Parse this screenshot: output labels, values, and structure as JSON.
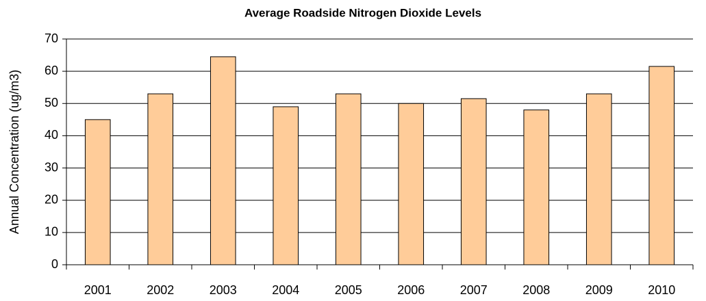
{
  "chart_data": {
    "type": "bar",
    "title": "Average Roadside Nitrogen Dioxide Levels",
    "y_label": "Annual Concentration (ug/m3)",
    "categories": [
      "2001",
      "2002",
      "2003",
      "2004",
      "2005",
      "2006",
      "2007",
      "2008",
      "2009",
      "2010"
    ],
    "values": [
      45,
      53,
      64.5,
      49,
      53,
      50,
      51.5,
      48,
      53,
      61.5
    ],
    "color": "#ffcc99",
    "ylim": [
      0,
      70
    ],
    "yticks": [
      0,
      10,
      20,
      30,
      40,
      50,
      60,
      70
    ],
    "grid": true
  }
}
